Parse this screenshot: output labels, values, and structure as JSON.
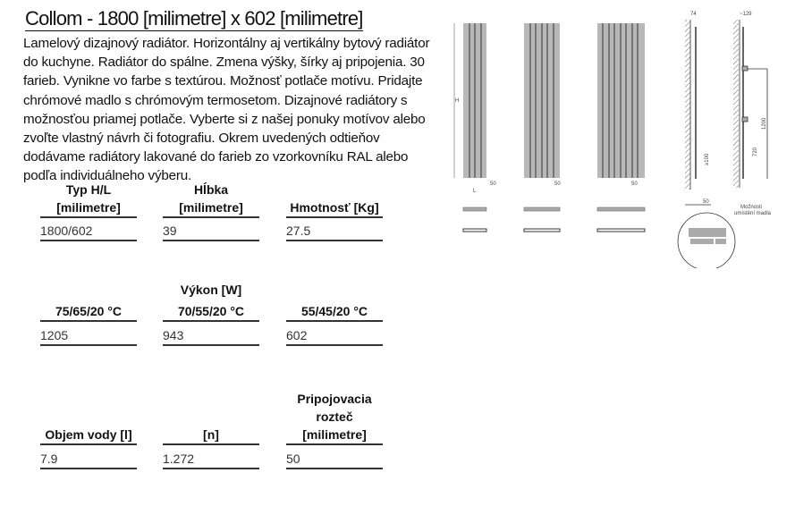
{
  "title": "Collom  - 1800 [milimetre] x 602 [milimetre]",
  "description": "Lamelový dizajnový radiátor. Horizontálny aj vertikálny bytový radiátor do kuchyne. Radiátor do spálne. Zmena výšky, šírky aj pripojenia. 30 farieb. Vynikne vo farbe s textúrou. Možnosť potlače motívu. Pridajte chrómové madlo s chrómovým termosetom. Dizajnové radiátory s možnosťou priamej potlače. Vyberte si z našej ponuky motívov alebo zvoľte vlastný návrh či fotografiu. Okrem uvedených odtieňov dodávame radiátory lakované do farieb zo vzorkovníku RAL alebo podľa individuálneho výberu.",
  "specs": {
    "dimensions": {
      "headers": [
        [
          "Typ H/L",
          "[milimetre]"
        ],
        [
          "Hĺbka",
          "[milimetre]"
        ],
        [
          "Hmotnosť [Kg]"
        ]
      ],
      "values": [
        "1800/602",
        "39",
        "27.5"
      ]
    },
    "output": {
      "caption": "Výkon [W]",
      "headers": [
        "75/65/20 °C",
        "70/55/20 °C",
        "55/45/20 °C"
      ],
      "values": [
        "1205",
        "943",
        "602"
      ]
    },
    "water": {
      "headers": [
        [
          "Objem vody [l]"
        ],
        [
          "[n]"
        ],
        [
          "Pripojovacia",
          "rozteč",
          "[milimetre]"
        ]
      ],
      "values": [
        "7.9",
        "1.272",
        "50"
      ]
    }
  },
  "drawing": {
    "labels": {
      "height": "H",
      "length": "L",
      "spacing": "50",
      "depth": "74",
      "handle_depth": "~129",
      "min_floor": "≥100",
      "h720": "720",
      "h1200": "1200",
      "floor50": "50",
      "handle_note_1": "Možnosti",
      "handle_note_2": "umístění madla"
    }
  }
}
